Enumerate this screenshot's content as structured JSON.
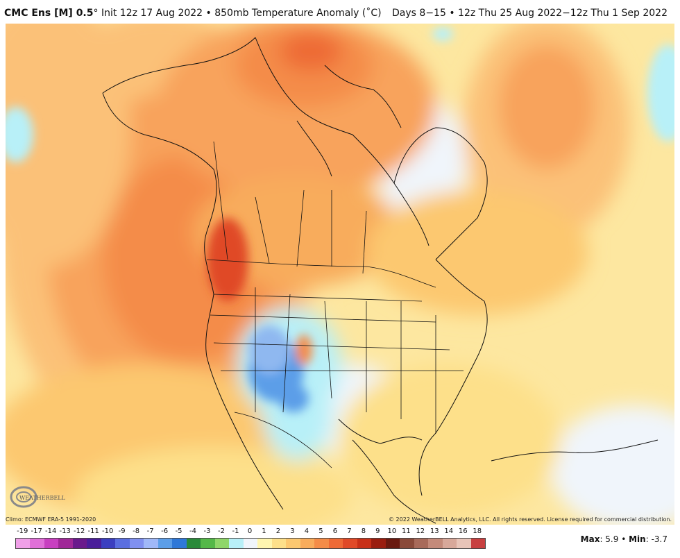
{
  "header": {
    "model": "CMC Ens [M] 0.5",
    "degree": "°",
    "init": " Init 12z 17 Aug 2022 • 850mb Temperature Anomaly (˚C)",
    "range": "Days 8−15 • 12z Thu 25 Aug 2022−12z Thu 1 Sep 2022"
  },
  "footer": {
    "climo": "Climo: ECMWF ERA-5 1991-2020",
    "copyright": "© 2022 WeatherBELL Analytics, LLC. All rights reserved. License required for commercial distribution.",
    "logo_text": "WEATHERBELL"
  },
  "legend": {
    "labels": [
      "-19",
      "-17",
      "-14",
      "-13",
      "-12",
      "-11",
      "-10",
      "-9",
      "-8",
      "-7",
      "-6",
      "-5",
      "-4",
      "-3",
      "-2",
      "-1",
      "0",
      "1",
      "2",
      "3",
      "4",
      "5",
      "6",
      "7",
      "8",
      "9",
      "10",
      "11",
      "12",
      "13",
      "14",
      "16",
      "18"
    ],
    "colors": [
      "#f0a0e8",
      "#e070d8",
      "#c840c0",
      "#a02898",
      "#6a1a8c",
      "#4a1e9a",
      "#3b3fc0",
      "#5a6ee0",
      "#8090f0",
      "#a0b8f8",
      "#5c9ee8",
      "#2f78d8",
      "#2a8a3a",
      "#54b848",
      "#8fd66a",
      "#b8f0f8",
      "#f0f5fb",
      "#fff6b0",
      "#fde08a",
      "#fcc870",
      "#f8ac5c",
      "#f48c48",
      "#ee6a36",
      "#e04a28",
      "#c83018",
      "#9a1e10",
      "#6a1a10",
      "#8a4a3a",
      "#a86a5a",
      "#c48a7a",
      "#d8a89a",
      "#e8c4b8",
      "#c84040"
    ]
  },
  "stats": {
    "max_label": "Max",
    "max_value": ": 5.9",
    "sep": " • ",
    "min_label": "Min",
    "min_value": ": -3.7"
  }
}
